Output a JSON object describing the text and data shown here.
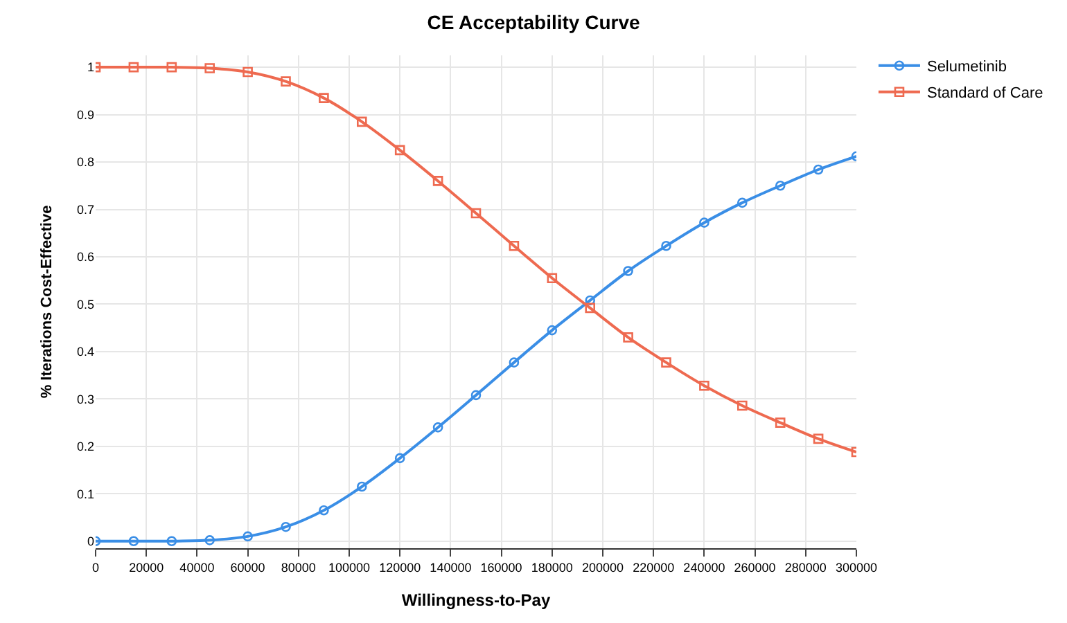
{
  "chart_data": {
    "type": "line",
    "title": "CE Acceptability Curve",
    "xlabel": "Willingness-to-Pay",
    "ylabel": "% Iterations Cost-Effective",
    "x": [
      0,
      15000,
      30000,
      45000,
      60000,
      75000,
      90000,
      105000,
      120000,
      135000,
      150000,
      165000,
      180000,
      195000,
      210000,
      225000,
      240000,
      255000,
      270000,
      285000,
      300000
    ],
    "series": [
      {
        "name": "Selumetinib",
        "color": "#3a8ee6",
        "marker": "circle",
        "values": [
          0,
          0,
          0,
          0.002,
          0.01,
          0.03,
          0.065,
          0.115,
          0.175,
          0.24,
          0.308,
          0.377,
          0.445,
          0.508,
          0.57,
          0.623,
          0.672,
          0.714,
          0.75,
          0.784,
          0.812
        ]
      },
      {
        "name": "Standard of Care",
        "color": "#ee6a50",
        "marker": "square",
        "values": [
          1,
          1,
          1,
          0.998,
          0.99,
          0.97,
          0.935,
          0.885,
          0.825,
          0.76,
          0.692,
          0.623,
          0.555,
          0.492,
          0.43,
          0.377,
          0.328,
          0.286,
          0.25,
          0.216,
          0.188
        ]
      }
    ],
    "xlim": [
      0,
      300000
    ],
    "xticks": [
      0,
      20000,
      40000,
      60000,
      80000,
      100000,
      120000,
      140000,
      160000,
      180000,
      200000,
      220000,
      240000,
      260000,
      280000,
      300000
    ],
    "ylim": [
      -0.015,
      1.025
    ],
    "yticks": [
      0,
      0.1,
      0.2,
      0.3,
      0.4,
      0.5,
      0.6,
      0.7,
      0.8,
      0.9,
      1
    ],
    "grid": true,
    "legend": "top right",
    "line_style": "solid"
  }
}
